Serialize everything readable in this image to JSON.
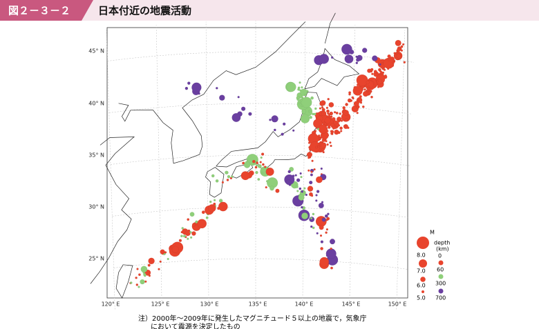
{
  "header": {
    "badge": "図２－３－２",
    "title": "日本付近の地震活動"
  },
  "map": {
    "lat_labels": [
      "45° N",
      "40° N",
      "35° N",
      "30° N",
      "25° N"
    ],
    "lon_labels": [
      "120° E",
      "125° E",
      "130° E",
      "135° E",
      "140° E",
      "145° E",
      "150° E"
    ]
  },
  "legend": {
    "magnitude_title": "M",
    "magnitudes": [
      "8.0",
      "7.0",
      "6.0",
      "5.0"
    ],
    "depth_title": [
      "depth",
      "(km)"
    ],
    "depths": [
      "0",
      "60",
      "300",
      "700"
    ]
  },
  "note": [
    "注）2000年～2009年に発生したマグニチュード５以上の地震で，気象庁",
    "において震源を決定したもの"
  ]
}
